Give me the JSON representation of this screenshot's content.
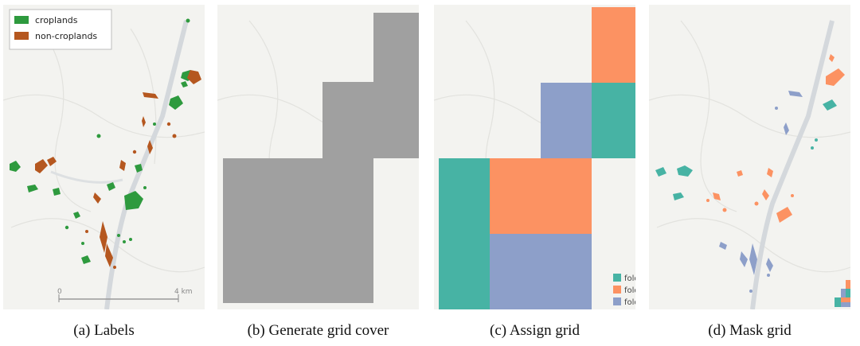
{
  "colors": {
    "map_bg": "#f3f3f0",
    "cropland": "#2e9a3e",
    "noncropland": "#b5571f",
    "grid_gray": "#a0a0a0",
    "fold_teal": "#47b3a4",
    "fold_orange": "#fc9262",
    "fold_blue": "#8d9fc9"
  },
  "panels": [
    {
      "caption": "(a) Labels",
      "legend": {
        "items": [
          {
            "label": "croplands",
            "color": "#2e9a3e"
          },
          {
            "label": "non-croplands",
            "color": "#b5571f"
          }
        ]
      },
      "scalebar": {
        "start": "0",
        "end": "4 km"
      }
    },
    {
      "caption": "(b) Generate grid cover"
    },
    {
      "caption": "(c) Assign grid",
      "legend": {
        "items": [
          {
            "label": "fold",
            "color": "#47b3a4"
          },
          {
            "label": "fold",
            "color": "#fc9262"
          },
          {
            "label": "fold",
            "color": "#8d9fc9"
          }
        ]
      }
    },
    {
      "caption": "(d) Mask grid"
    }
  ]
}
